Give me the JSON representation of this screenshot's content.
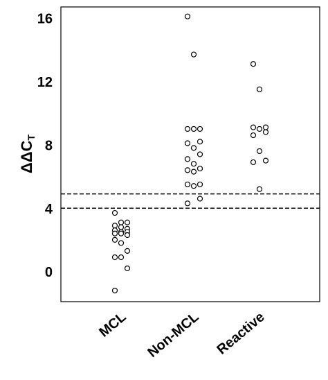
{
  "chart_data": {
    "type": "strip",
    "y_label": "ΔΔC",
    "y_label_subscript": "T",
    "categories": [
      "MCL",
      "Non-MCL",
      "Reactive"
    ],
    "series": [
      {
        "name": "MCL",
        "values": [
          3.8,
          3.2,
          3.2,
          3.0,
          2.9,
          2.8,
          2.7,
          2.6,
          2.6,
          2.5,
          2.5,
          2.4,
          2.1,
          1.9,
          1.4,
          1.0,
          1.0,
          0.3,
          -1.1
        ]
      },
      {
        "name": "Non-MCL",
        "values": [
          16.2,
          13.8,
          9.1,
          9.1,
          9.1,
          8.3,
          8.2,
          7.9,
          7.5,
          7.2,
          6.9,
          6.6,
          6.5,
          6.4,
          5.6,
          5.6,
          5.5,
          4.7,
          4.4
        ]
      },
      {
        "name": "Reactive",
        "values": [
          13.2,
          11.6,
          9.2,
          9.2,
          9.1,
          8.9,
          8.7,
          7.7,
          7.1,
          7.0,
          5.3
        ]
      }
    ],
    "reference_lines": [
      4.1,
      5.0
    ],
    "ylim": [
      -1.8,
      16.8
    ],
    "yticks": [
      0,
      4,
      8,
      12,
      16
    ]
  }
}
